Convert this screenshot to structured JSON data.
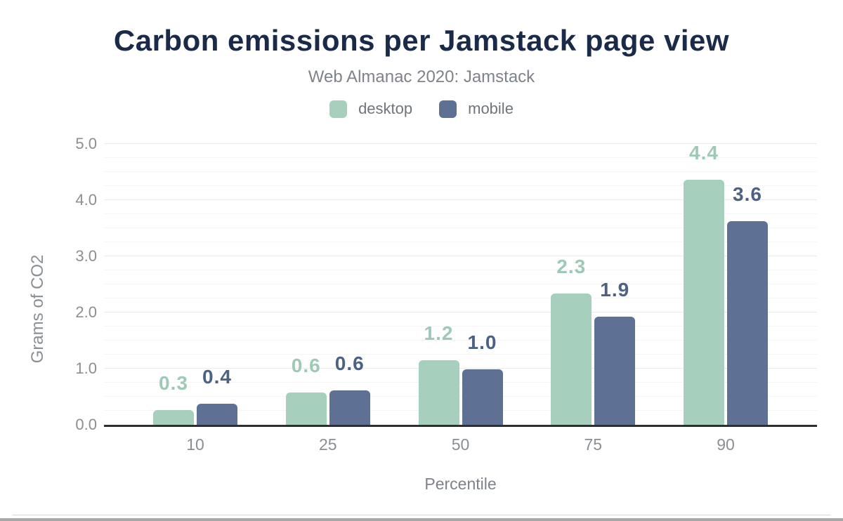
{
  "page": {
    "hairline_color": "#d9d9d9",
    "bottom_bar_color": "#a8a8a8"
  },
  "chart_data": {
    "type": "bar",
    "title": "Carbon emissions per Jamstack page view",
    "subtitle": "Web Almanac 2020: Jamstack",
    "xlabel": "Percentile",
    "ylabel": "Grams of CO2",
    "ylim": [
      0,
      5
    ],
    "ytick_labels": [
      "0.0",
      "1.0",
      "2.0",
      "3.0",
      "4.0",
      "5.0"
    ],
    "minor_grid_step": 0.25,
    "grid": true,
    "legend_position": "top",
    "categories": [
      "10",
      "25",
      "50",
      "75",
      "90"
    ],
    "series": [
      {
        "name": "desktop",
        "color": "#a6cfbe",
        "label_color": "#9fc9b6",
        "values": [
          0.26,
          0.58,
          1.15,
          2.34,
          4.36
        ],
        "labels": [
          "0.3",
          "0.6",
          "1.2",
          "2.3",
          "4.4"
        ]
      },
      {
        "name": "mobile",
        "color": "#5e7194",
        "label_color": "#4d6183",
        "values": [
          0.38,
          0.61,
          0.99,
          1.93,
          3.63
        ],
        "labels": [
          "0.4",
          "0.6",
          "1.0",
          "1.9",
          "3.6"
        ]
      }
    ],
    "colors": {
      "title": "#1c2a4a",
      "subtitle": "#7e838a",
      "axis_text": "#8a8f94",
      "legend_text": "#6f757b",
      "baseline": "#2f2f2f",
      "major_grid": "#eaeaea",
      "minor_grid": "#f5f5f5"
    }
  }
}
